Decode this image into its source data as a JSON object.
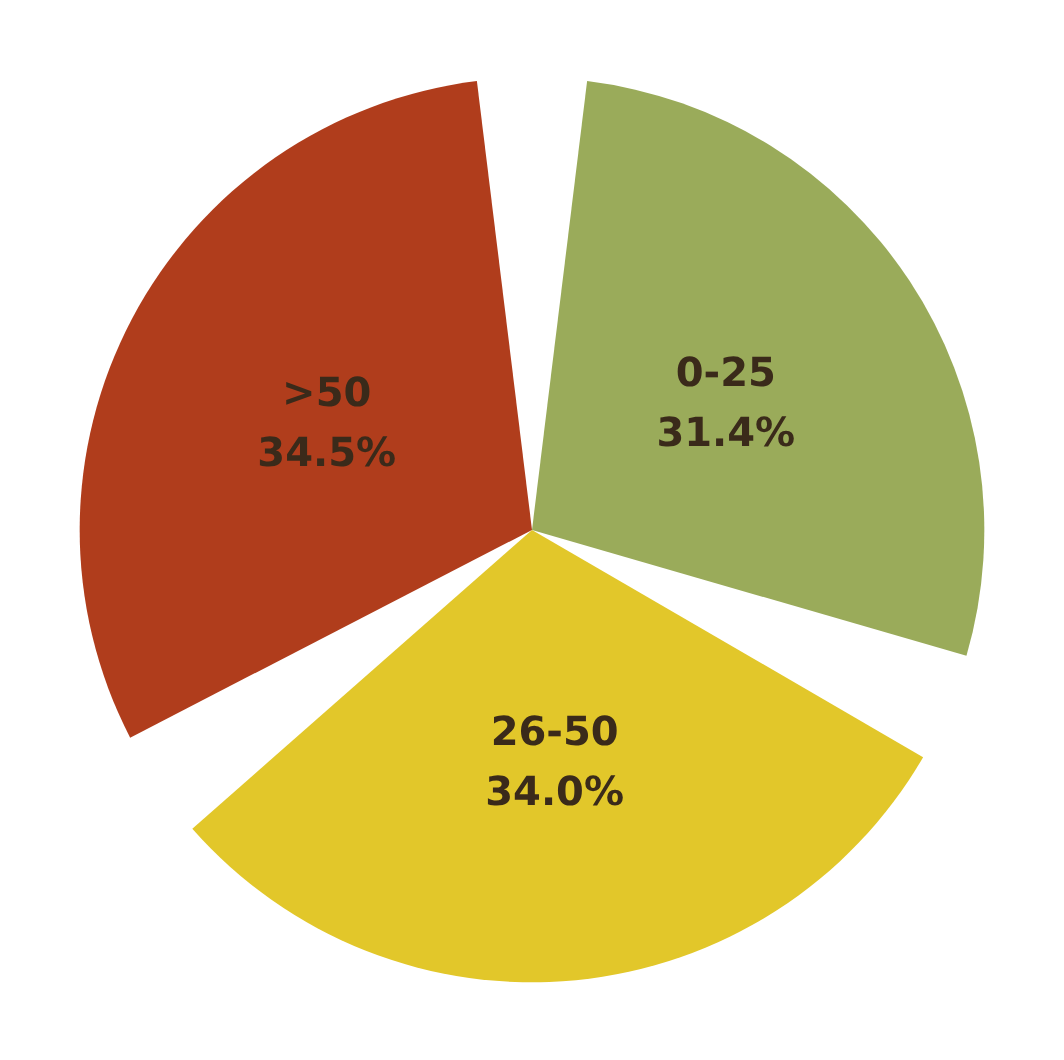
{
  "chart_data": {
    "type": "pie",
    "categories": [
      "0-25",
      "26-50",
      ">50"
    ],
    "values": [
      31.4,
      34.0,
      34.5
    ],
    "colors": [
      "#9aab5a",
      "#e2c72a",
      "#b03d1c"
    ],
    "value_labels": [
      "31.4%",
      "34.0%",
      "34.5%"
    ],
    "legend": false
  }
}
